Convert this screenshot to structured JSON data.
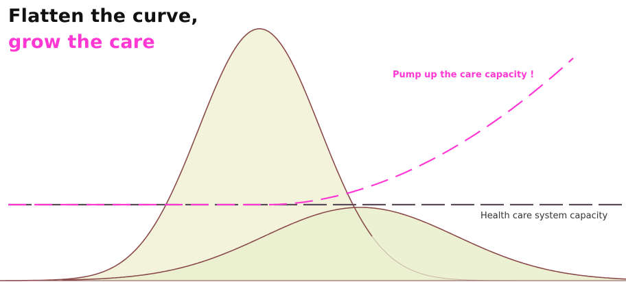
{
  "title": {
    "line1": "Flatten the curve,",
    "line2": "grow the care"
  },
  "annotations": {
    "pump_up": "Pump up the care capacity !",
    "capacity": "Health care system capacity"
  },
  "colors": {
    "title_dark": "#111111",
    "title_accent": "#ff38d4",
    "curve_fill": "#f3f3dc",
    "curve_fill_overlap": "#eaf0cf",
    "curve_stroke": "#8a4a4a",
    "capacity_line": "#5a4a58",
    "dashed_growth": "#ff38d4",
    "text_dark": "#333333"
  },
  "diagram": {
    "curves": [
      {
        "name": "tall-peak-curve"
      },
      {
        "name": "flattened-curve"
      }
    ],
    "capacity_line": {
      "style": "dashed"
    },
    "growth_line": {
      "style": "dashed"
    }
  }
}
